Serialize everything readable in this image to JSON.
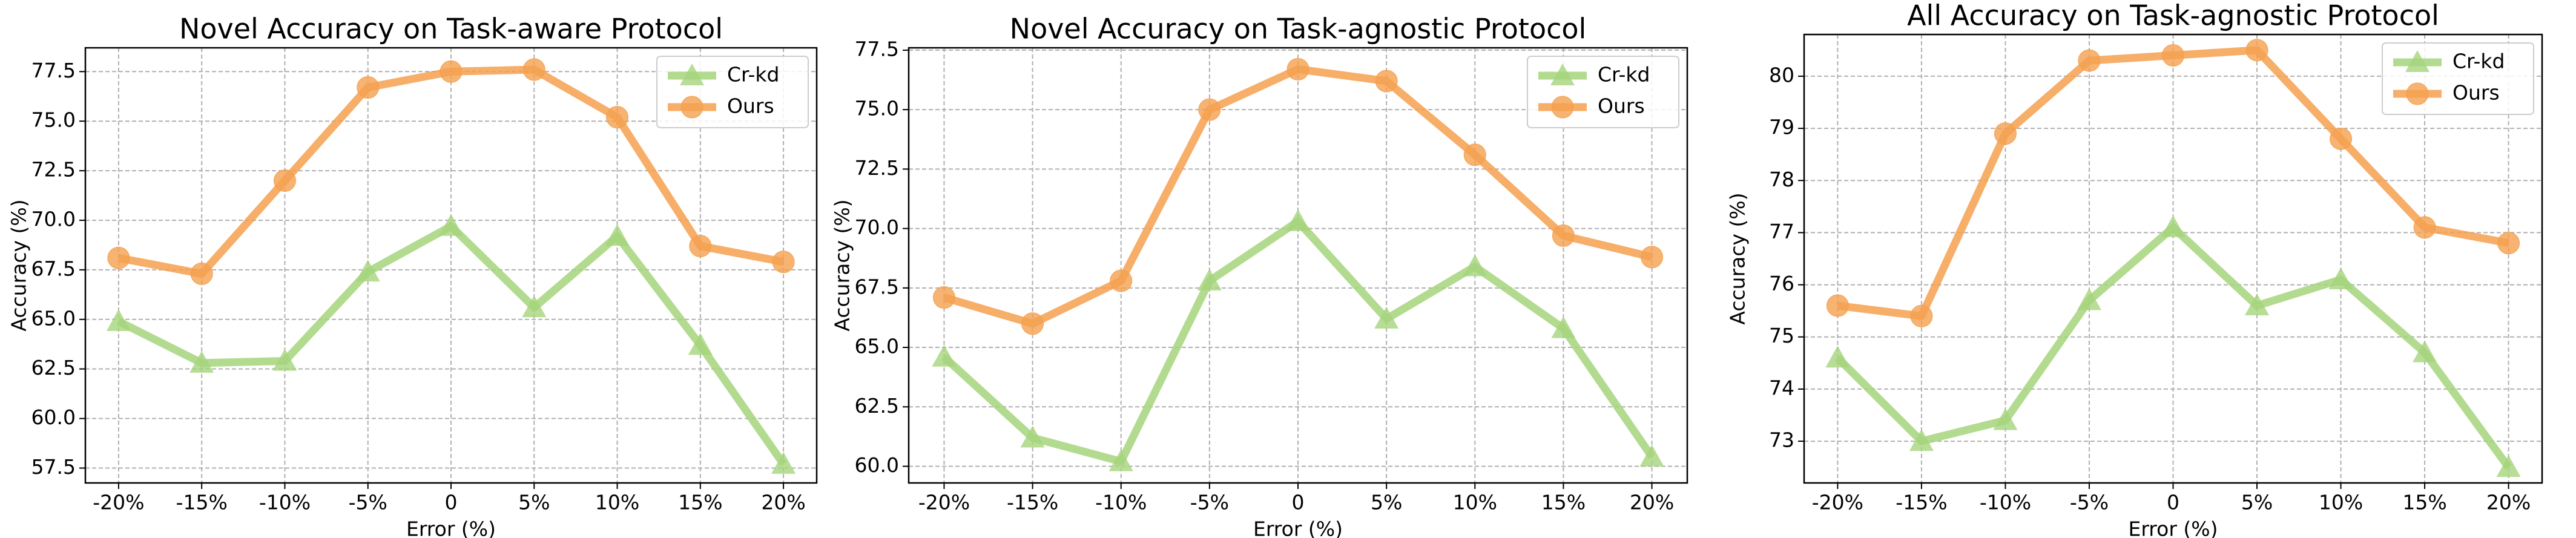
{
  "chart_data": [
    {
      "type": "line",
      "title": "Novel Accuracy on Task-aware Protocol",
      "x_label": "Error (%)",
      "y_label": "Accuracy (%)",
      "categories": [
        "-20%",
        "-15%",
        "-10%",
        "-5%",
        "0",
        "5%",
        "10%",
        "15%",
        "20%"
      ],
      "series": [
        {
          "name": "Cr-kd",
          "color": "#a5d57c",
          "marker": "triangle",
          "values": [
            64.9,
            62.8,
            62.9,
            67.4,
            69.7,
            65.6,
            69.2,
            63.7,
            57.7
          ]
        },
        {
          "name": "Ours",
          "color": "#f5a04f",
          "marker": "circle",
          "values": [
            68.1,
            67.3,
            72.0,
            76.7,
            77.5,
            77.6,
            75.2,
            68.7,
            67.9
          ]
        }
      ],
      "ylim": [
        56.75,
        78.7
      ],
      "yticks": [
        57.5,
        {
          "value": 60,
          "label": "60.0"
        },
        62.5,
        {
          "value": 65,
          "label": "65.0"
        },
        67.5,
        {
          "value": 70,
          "label": "70.0"
        },
        72.5,
        {
          "value": 75,
          "label": "75.0"
        },
        77.5
      ],
      "grid": true,
      "legend": "upper right"
    },
    {
      "type": "line",
      "title": "Novel Accuracy on Task-agnostic Protocol",
      "x_label": "Error (%)",
      "y_label": "Accuracy (%)",
      "categories": [
        "-20%",
        "-15%",
        "-10%",
        "-5%",
        "0",
        "5%",
        "10%",
        "15%",
        "20%"
      ],
      "series": [
        {
          "name": "Cr-kd",
          "color": "#a5d57c",
          "marker": "triangle",
          "values": [
            64.6,
            61.2,
            60.2,
            67.8,
            70.3,
            66.2,
            68.4,
            65.8,
            60.4
          ]
        },
        {
          "name": "Ours",
          "color": "#f5a04f",
          "marker": "circle",
          "values": [
            67.1,
            66.0,
            67.8,
            75.0,
            76.7,
            76.2,
            73.1,
            69.7,
            68.8
          ]
        }
      ],
      "ylim": [
        59.3,
        77.6
      ],
      "yticks": [
        {
          "value": 60,
          "label": "60.0"
        },
        62.5,
        {
          "value": 65,
          "label": "65.0"
        },
        67.5,
        {
          "value": 70,
          "label": "70.0"
        },
        72.5,
        {
          "value": 75,
          "label": "75.0"
        },
        77.5
      ],
      "grid": true,
      "legend": "upper right"
    },
    {
      "type": "line",
      "title": "All Accuracy on Task-agnostic Protocol",
      "x_label": "Error (%)",
      "y_label": "Accuracy (%)",
      "categories": [
        "-20%",
        "-15%",
        "-10%",
        "-5%",
        "0",
        "5%",
        "10%",
        "15%",
        "20%"
      ],
      "series": [
        {
          "name": "Cr-kd",
          "color": "#a5d57c",
          "marker": "triangle",
          "values": [
            74.6,
            73.0,
            73.4,
            75.7,
            77.1,
            75.6,
            76.1,
            74.7,
            72.5
          ]
        },
        {
          "name": "Ours",
          "color": "#f5a04f",
          "marker": "circle",
          "values": [
            75.6,
            75.4,
            78.9,
            80.3,
            80.4,
            80.5,
            78.8,
            77.1,
            76.8
          ]
        }
      ],
      "ylim": [
        72.2,
        80.8
      ],
      "yticks": [
        73,
        74,
        75,
        76,
        77,
        78,
        79,
        80
      ],
      "grid": true,
      "legend": "upper right"
    }
  ]
}
